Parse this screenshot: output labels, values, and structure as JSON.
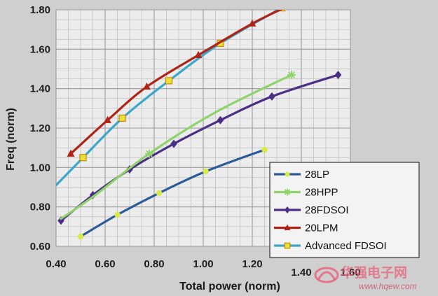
{
  "chart_data": {
    "type": "line",
    "title": "",
    "xlabel": "Total power (norm)",
    "ylabel": "Freq (norm)",
    "xlim": [
      0.4,
      1.6
    ],
    "ylim": [
      0.6,
      1.8
    ],
    "xticks": [
      "0.40",
      "0.60",
      "0.80",
      "1.00",
      "1.20",
      "1.40",
      "1.60"
    ],
    "yticks": [
      "0.60",
      "0.80",
      "1.00",
      "1.20",
      "1.40",
      "1.60",
      "1.80"
    ],
    "grid": true,
    "legend_position": "bottom-right",
    "series": [
      {
        "name": "28LP",
        "color": "#2b5c99",
        "marker": "circle",
        "marker_color": "#d8ea4a",
        "curve": [
          [
            0.5,
            0.65
          ],
          [
            0.65,
            0.76
          ],
          [
            0.82,
            0.87
          ],
          [
            1.01,
            0.98
          ],
          [
            1.25,
            1.09
          ]
        ],
        "points": [
          [
            0.5,
            0.65
          ],
          [
            0.65,
            0.76
          ],
          [
            0.82,
            0.87
          ],
          [
            1.01,
            0.98
          ],
          [
            1.25,
            1.09
          ]
        ]
      },
      {
        "name": "28HPP",
        "color": "#8fd36a",
        "marker": "star",
        "marker_color": "#8fd36a",
        "curve": [
          [
            0.42,
            0.74
          ],
          [
            0.56,
            0.86
          ],
          [
            0.78,
            1.07
          ],
          [
            1.05,
            1.28
          ],
          [
            1.36,
            1.47
          ]
        ],
        "points": [
          [
            0.78,
            1.07
          ],
          [
            1.36,
            1.47
          ]
        ]
      },
      {
        "name": "28FDSOI",
        "color": "#4b2e86",
        "marker": "diamond",
        "marker_color": "#4b2e86",
        "curve": [
          [
            0.42,
            0.73
          ],
          [
            0.55,
            0.86
          ],
          [
            0.7,
            0.99
          ],
          [
            0.88,
            1.12
          ],
          [
            1.07,
            1.24
          ],
          [
            1.28,
            1.36
          ],
          [
            1.55,
            1.47
          ]
        ],
        "points": [
          [
            0.42,
            0.73
          ],
          [
            0.55,
            0.86
          ],
          [
            0.7,
            0.99
          ],
          [
            0.88,
            1.12
          ],
          [
            1.07,
            1.24
          ],
          [
            1.28,
            1.36
          ],
          [
            1.55,
            1.47
          ]
        ]
      },
      {
        "name": "20LPM",
        "color": "#b02418",
        "marker": "triangle",
        "marker_color": "#b02418",
        "curve": [
          [
            0.46,
            1.07
          ],
          [
            0.61,
            1.24
          ],
          [
            0.77,
            1.41
          ],
          [
            0.98,
            1.57
          ],
          [
            1.2,
            1.73
          ],
          [
            1.33,
            1.81
          ]
        ],
        "points": [
          [
            0.46,
            1.07
          ],
          [
            0.61,
            1.24
          ],
          [
            0.77,
            1.41
          ],
          [
            0.98,
            1.57
          ],
          [
            1.2,
            1.73
          ]
        ]
      },
      {
        "name": "Advanced FDSOI",
        "color": "#3aa8c9",
        "marker": "square",
        "marker_color": "#e8e23a",
        "curve": [
          [
            0.4,
            0.91
          ],
          [
            0.51,
            1.05
          ],
          [
            0.67,
            1.25
          ],
          [
            0.86,
            1.44
          ],
          [
            1.07,
            1.63
          ],
          [
            1.32,
            1.81
          ]
        ],
        "points": [
          [
            0.51,
            1.05
          ],
          [
            0.67,
            1.25
          ],
          [
            0.86,
            1.44
          ],
          [
            1.07,
            1.63
          ],
          [
            1.32,
            1.81
          ]
        ]
      }
    ]
  },
  "watermark": {
    "brand": "华强电子网",
    "url": "www.hqew.com"
  }
}
